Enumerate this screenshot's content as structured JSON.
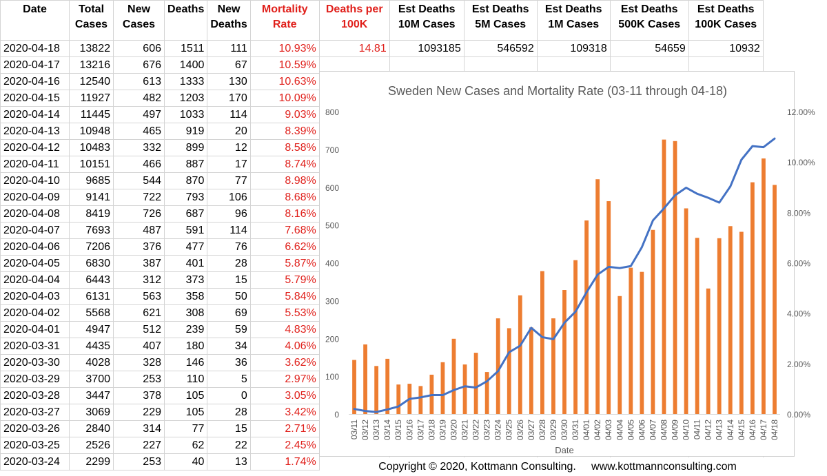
{
  "table": {
    "headers": [
      {
        "line1": "Date",
        "line2": "",
        "color": "black"
      },
      {
        "line1": "Total",
        "line2": "Cases",
        "color": "black"
      },
      {
        "line1": "New",
        "line2": "Cases",
        "color": "black"
      },
      {
        "line1": "Deaths",
        "line2": "",
        "color": "black"
      },
      {
        "line1": "New",
        "line2": "Deaths",
        "color": "black"
      },
      {
        "line1": "Mortality",
        "line2": "Rate",
        "color": "red"
      },
      {
        "line1": "Deaths per",
        "line2": "100K",
        "color": "red"
      },
      {
        "line1": "Est Deaths",
        "line2": "10M Cases",
        "color": "black"
      },
      {
        "line1": "Est Deaths",
        "line2": "5M Cases",
        "color": "black"
      },
      {
        "line1": "Est Deaths",
        "line2": "1M Cases",
        "color": "black"
      },
      {
        "line1": "Est Deaths",
        "line2": "500K Cases",
        "color": "black"
      },
      {
        "line1": "Est Deaths",
        "line2": "100K Cases",
        "color": "black"
      }
    ],
    "first_row_extra": [
      "14.81",
      "1093185",
      "546592",
      "109318",
      "54659",
      "10932"
    ],
    "rows": [
      [
        "2020-04-18",
        "13822",
        "606",
        "1511",
        "111",
        "10.93%"
      ],
      [
        "2020-04-17",
        "13216",
        "676",
        "1400",
        "67",
        "10.59%"
      ],
      [
        "2020-04-16",
        "12540",
        "613",
        "1333",
        "130",
        "10.63%"
      ],
      [
        "2020-04-15",
        "11927",
        "482",
        "1203",
        "170",
        "10.09%"
      ],
      [
        "2020-04-14",
        "11445",
        "497",
        "1033",
        "114",
        "9.03%"
      ],
      [
        "2020-04-13",
        "10948",
        "465",
        "919",
        "20",
        "8.39%"
      ],
      [
        "2020-04-12",
        "10483",
        "332",
        "899",
        "12",
        "8.58%"
      ],
      [
        "2020-04-11",
        "10151",
        "466",
        "887",
        "17",
        "8.74%"
      ],
      [
        "2020-04-10",
        "9685",
        "544",
        "870",
        "77",
        "8.98%"
      ],
      [
        "2020-04-09",
        "9141",
        "722",
        "793",
        "106",
        "8.68%"
      ],
      [
        "2020-04-08",
        "8419",
        "726",
        "687",
        "96",
        "8.16%"
      ],
      [
        "2020-04-07",
        "7693",
        "487",
        "591",
        "114",
        "7.68%"
      ],
      [
        "2020-04-06",
        "7206",
        "376",
        "477",
        "76",
        "6.62%"
      ],
      [
        "2020-04-05",
        "6830",
        "387",
        "401",
        "28",
        "5.87%"
      ],
      [
        "2020-04-04",
        "6443",
        "312",
        "373",
        "15",
        "5.79%"
      ],
      [
        "2020-04-03",
        "6131",
        "563",
        "358",
        "50",
        "5.84%"
      ],
      [
        "2020-04-02",
        "5568",
        "621",
        "308",
        "69",
        "5.53%"
      ],
      [
        "2020-04-01",
        "4947",
        "512",
        "239",
        "59",
        "4.83%"
      ],
      [
        "2020-03-31",
        "4435",
        "407",
        "180",
        "34",
        "4.06%"
      ],
      [
        "2020-03-30",
        "4028",
        "328",
        "146",
        "36",
        "3.62%"
      ],
      [
        "2020-03-29",
        "3700",
        "253",
        "110",
        "5",
        "2.97%"
      ],
      [
        "2020-03-28",
        "3447",
        "378",
        "105",
        "0",
        "3.05%"
      ],
      [
        "2020-03-27",
        "3069",
        "229",
        "105",
        "28",
        "3.42%"
      ],
      [
        "2020-03-26",
        "2840",
        "314",
        "77",
        "15",
        "2.71%"
      ],
      [
        "2020-03-25",
        "2526",
        "227",
        "62",
        "22",
        "2.45%"
      ],
      [
        "2020-03-24",
        "2299",
        "253",
        "40",
        "13",
        "1.74%"
      ]
    ]
  },
  "chart_data": {
    "type": "bar",
    "title": "Sweden New Cases and Mortality Rate (03-11 through 04-18)",
    "xlabel": "Date",
    "ylabel": "",
    "ylim": [
      0,
      800
    ],
    "y_ticks": [
      0,
      100,
      200,
      300,
      400,
      500,
      600,
      700,
      800
    ],
    "y2lim": [
      0,
      12
    ],
    "y2_ticks": [
      "0.00%",
      "2.00%",
      "4.00%",
      "6.00%",
      "8.00%",
      "10.00%",
      "12.00%"
    ],
    "grid": false,
    "legend": "none",
    "categories": [
      "03/11",
      "03/12",
      "03/13",
      "03/14",
      "03/15",
      "03/16",
      "03/17",
      "03/18",
      "03/19",
      "03/20",
      "03/21",
      "03/22",
      "03/23",
      "03/24",
      "03/25",
      "03/26",
      "03/27",
      "03/28",
      "03/29",
      "03/30",
      "03/31",
      "04/01",
      "04/02",
      "04/03",
      "04/04",
      "04/05",
      "04/06",
      "04/07",
      "04/08",
      "04/09",
      "04/10",
      "04/11",
      "04/12",
      "04/13",
      "04/14",
      "04/15",
      "04/16",
      "04/17",
      "04/18"
    ],
    "series": [
      {
        "type": "bar",
        "axis": "left",
        "color": "#ed7d31",
        "values": [
          143,
          184,
          127,
          146,
          78,
          80,
          74,
          104,
          137,
          199,
          131,
          162,
          111,
          253,
          227,
          314,
          229,
          378,
          253,
          328,
          407,
          512,
          621,
          563,
          312,
          387,
          376,
          487,
          726,
          722,
          544,
          466,
          332,
          465,
          497,
          482,
          613,
          676,
          606
        ]
      },
      {
        "type": "line",
        "axis": "right",
        "color": "#4472c4",
        "values": [
          0.2,
          0.12,
          0.08,
          0.18,
          0.3,
          0.6,
          0.66,
          0.75,
          0.75,
          0.95,
          1.1,
          1.05,
          1.3,
          1.7,
          2.45,
          2.71,
          3.42,
          3.05,
          2.97,
          3.62,
          4.06,
          4.83,
          5.53,
          5.84,
          5.79,
          5.87,
          6.62,
          7.68,
          8.16,
          8.68,
          8.98,
          8.74,
          8.58,
          8.39,
          9.03,
          10.09,
          10.63,
          10.59,
          10.93
        ]
      }
    ]
  },
  "footer": {
    "copyright": "Copyright © 2020, Kottmann Consulting.",
    "website": "www.kottmannconsulting.com"
  }
}
